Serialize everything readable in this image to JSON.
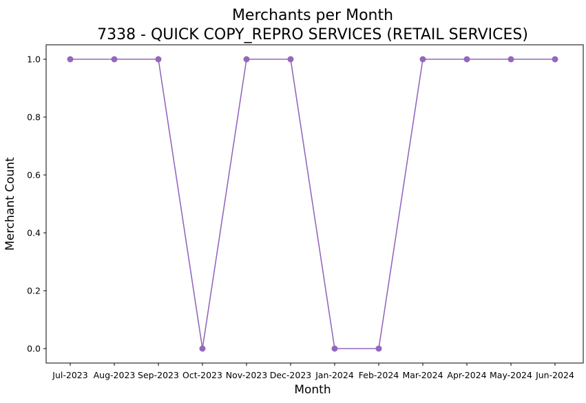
{
  "chart_data": {
    "type": "line",
    "title": "Merchants per Month",
    "subtitle": "7338 - QUICK COPY_REPRO SERVICES (RETAIL SERVICES)",
    "xlabel": "Month",
    "ylabel": "Merchant Count",
    "categories": [
      "Jul-2023",
      "Aug-2023",
      "Sep-2023",
      "Oct-2023",
      "Nov-2023",
      "Dec-2023",
      "Jan-2024",
      "Feb-2024",
      "Mar-2024",
      "Apr-2024",
      "May-2024",
      "Jun-2024"
    ],
    "series": [
      {
        "values": [
          1,
          1,
          1,
          0,
          1,
          1,
          0,
          0,
          1,
          1,
          1,
          1
        ],
        "color": "#9467bd",
        "marker": "circle"
      }
    ],
    "ylim": [
      -0.05,
      1.05
    ],
    "yticks": [
      "0.0",
      "0.2",
      "0.4",
      "0.6",
      "0.8",
      "1.0"
    ],
    "ytick_values": [
      0,
      0.2,
      0.4,
      0.6,
      0.8,
      1.0
    ],
    "grid": false,
    "legend": "none"
  }
}
